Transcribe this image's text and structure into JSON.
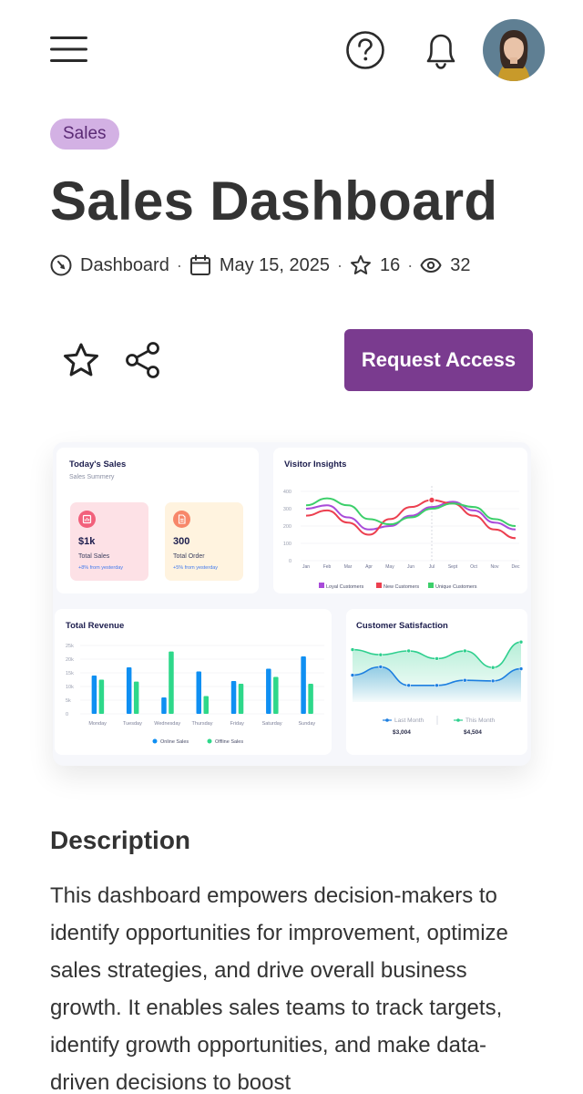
{
  "header": {
    "menu_icon": "hamburger-menu-icon",
    "help_icon": "question-circle-icon",
    "notification_icon": "bell-icon",
    "avatar_alt": "user avatar"
  },
  "badge": "Sales",
  "title": "Sales Dashboard",
  "meta": {
    "category": "Dashboard",
    "date": "May 15, 2025",
    "favorites": "16",
    "views": "32",
    "separator": "·"
  },
  "actions": {
    "favorite_icon": "star-outline-icon",
    "share_icon": "share-icon",
    "request_label": "Request Access"
  },
  "preview": {
    "todays_sales": {
      "title": "Today's Sales",
      "subtitle": "Sales Summery",
      "stats": [
        {
          "value": "$1k",
          "label": "Total Sales",
          "note": "+8% from yesterday",
          "bg": "#fde1e6",
          "accent": "#f2607b"
        },
        {
          "value": "300",
          "label": "Total Order",
          "note": "+5% from yesterday",
          "bg": "#fff3df",
          "accent": "#f7876a"
        }
      ]
    },
    "visitor_insights": {
      "title": "Visitor Insights",
      "chart_data": {
        "type": "line",
        "categories": [
          "Jan",
          "Feb",
          "Mar",
          "Apr",
          "May",
          "Jun",
          "Jul",
          "Sept",
          "Oct",
          "Nov",
          "Dec"
        ],
        "yticks": [
          "0",
          "100",
          "200",
          "300",
          "400"
        ],
        "ylim": [
          0,
          400
        ],
        "series": [
          {
            "name": "Loyal Customers",
            "color": "#a94bd9",
            "values": [
              300,
              320,
              250,
              180,
              200,
              260,
              310,
              340,
              290,
              220,
              180
            ]
          },
          {
            "name": "New Customers",
            "color": "#ec3f4f",
            "values": [
              260,
              290,
              220,
              150,
              240,
              310,
              350,
              330,
              260,
              180,
              130
            ]
          },
          {
            "name": "Unique Customers",
            "color": "#3ccf6a",
            "values": [
              320,
              360,
              320,
              240,
              210,
              250,
              300,
              330,
              310,
              240,
              200
            ]
          }
        ],
        "highlight": {
          "category": "Jul",
          "series": "New Customers"
        }
      }
    },
    "total_revenue": {
      "title": "Total Revenue",
      "chart_data": {
        "type": "bar",
        "categories": [
          "Monday",
          "Tuesday",
          "Wednesday",
          "Thursday",
          "Friday",
          "Saturday",
          "Sunday"
        ],
        "yticks": [
          "0",
          "5k",
          "10k",
          "15k",
          "20k",
          "25k"
        ],
        "ylim": [
          0,
          25000
        ],
        "series": [
          {
            "name": "Online Sales",
            "color": "#0f8ff2",
            "values": [
              14000,
              17000,
              6000,
              15500,
              12000,
              16500,
              21000
            ]
          },
          {
            "name": "Offline Sales",
            "color": "#2ed88a",
            "values": [
              12500,
              11800,
              22800,
              6500,
              11000,
              13500,
              11000
            ]
          }
        ]
      }
    },
    "customer_satisfaction": {
      "title": "Customer Satisfaction",
      "chart_data": {
        "type": "area",
        "x": [
          0,
          1,
          2,
          3,
          4,
          5,
          6
        ],
        "ylim": [
          0,
          100
        ],
        "series": [
          {
            "name": "Last Month",
            "color": "#1d7fe0",
            "values": [
              42,
              55,
              26,
              26,
              34,
              33,
              52
            ]
          },
          {
            "name": "This Month",
            "color": "#2ecf8e",
            "values": [
              82,
              74,
              80,
              68,
              80,
              54,
              94
            ]
          }
        ],
        "totals": [
          "$3,004",
          "$4,504"
        ]
      }
    }
  },
  "description": {
    "title": "Description",
    "body": "This dashboard empowers decision-makers to identify opportunities for improvement, optimize sales strategies, and drive overall business growth. It enables sales teams to track targets, identify growth opportunities, and make data-driven decisions to boost"
  }
}
